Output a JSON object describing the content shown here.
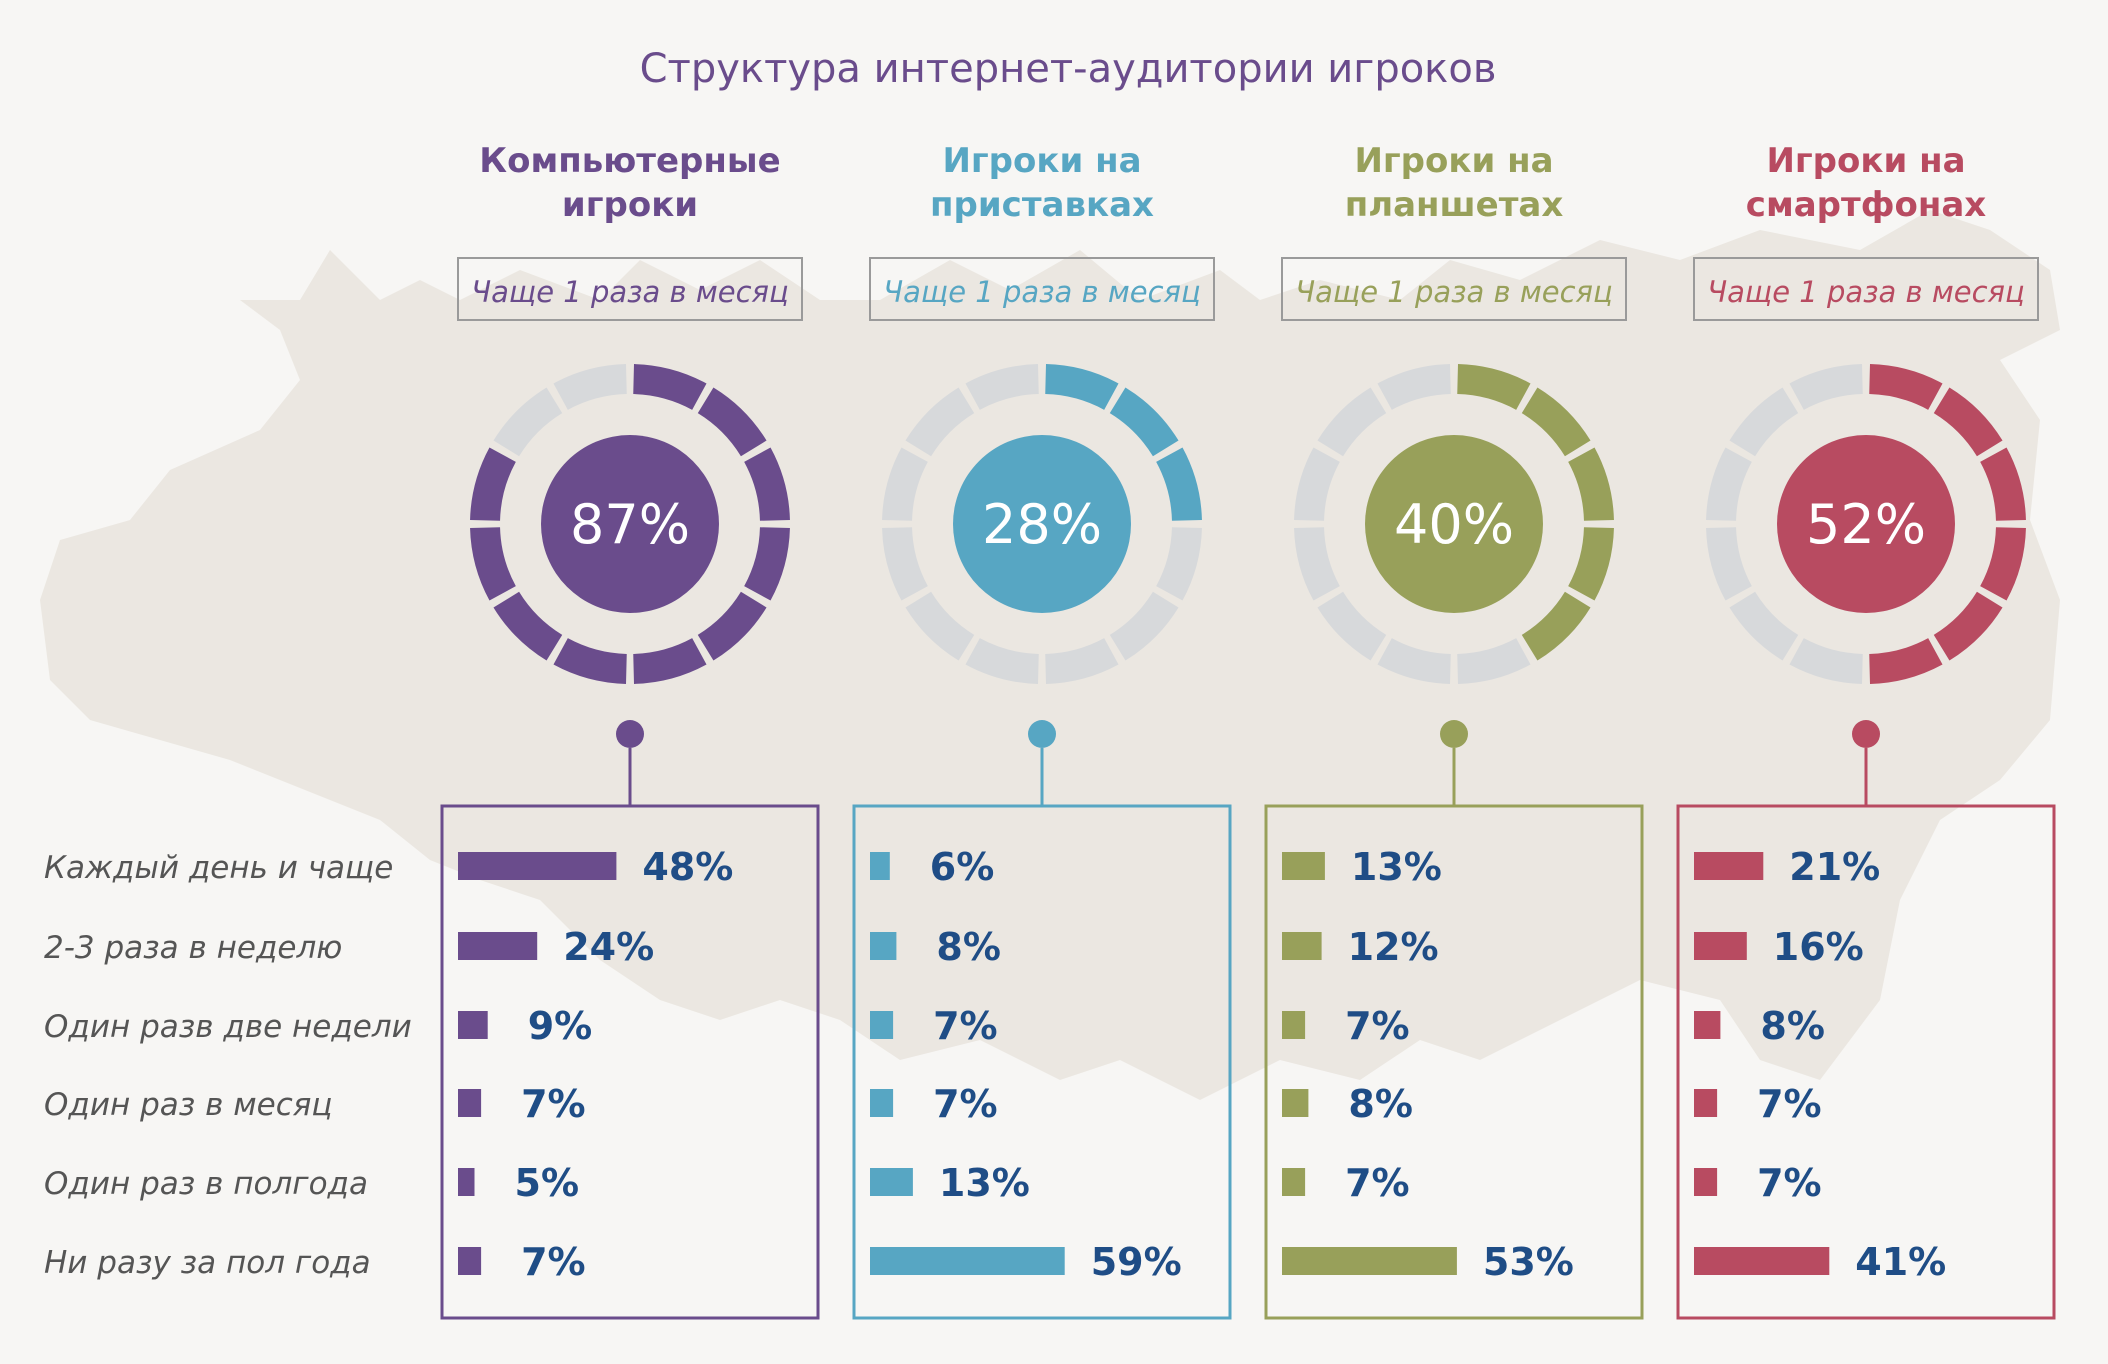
{
  "title": "Структура интернет-аудитории игроков",
  "colors": {
    "background": "#f7f6f4",
    "map": "#ebe7e1",
    "ring_inactive": "#d7d9db",
    "value_text": "#1f4d86",
    "label_text": "#555555",
    "frame": "#9a9a9a"
  },
  "row_labels": [
    "Каждый день и чаще",
    "2-3 раза в неделю",
    "Один разв две недели",
    "Один раз в месяц",
    "Один раз в полгода",
    "Ни разу за пол года"
  ],
  "chart_data": {
    "type": "bar",
    "title": "Структура интернет-аудитории игроков",
    "categories": [
      "Каждый день и чаще",
      "2-3 раза в неделю",
      "Один разв две недели",
      "Один раз в месяц",
      "Один раз в полгода",
      "Ни разу за пол года"
    ],
    "series": [
      {
        "name": "Компьютерные игроки",
        "heading": [
          "Компьютерные",
          "игроки"
        ],
        "frequency_label": "Чаще 1 раза в месяц",
        "donut_value": 87,
        "donut_label": "87%",
        "color": "#6a4c8c",
        "values": [
          48,
          24,
          9,
          7,
          5,
          7
        ],
        "value_labels": [
          "48%",
          "24%",
          "9%",
          "7%",
          "5%",
          "7%"
        ]
      },
      {
        "name": "Игроки на приставках",
        "heading": [
          "Игроки на",
          "приставках"
        ],
        "frequency_label": "Чаще 1 раза в месяц",
        "donut_value": 28,
        "donut_label": "28%",
        "color": "#57a6c3",
        "values": [
          6,
          8,
          7,
          7,
          13,
          59
        ],
        "value_labels": [
          "6%",
          "8%",
          "7%",
          "7%",
          "13%",
          "59%"
        ]
      },
      {
        "name": "Игроки на планшетах",
        "heading": [
          "Игроки на",
          "планшетах"
        ],
        "frequency_label": "Чаще 1 раза в месяц",
        "donut_value": 40,
        "donut_label": "40%",
        "color": "#98a05a",
        "values": [
          13,
          12,
          7,
          8,
          7,
          53
        ],
        "value_labels": [
          "13%",
          "12%",
          "7%",
          "8%",
          "7%",
          "53%"
        ]
      },
      {
        "name": "Игроки на смартфонах",
        "heading": [
          "Игроки на",
          "смартфонах"
        ],
        "frequency_label": "Чаще 1 раза в месяц",
        "donut_value": 52,
        "donut_label": "52%",
        "color": "#b84b61",
        "values": [
          21,
          16,
          8,
          7,
          7,
          41
        ],
        "value_labels": [
          "21%",
          "16%",
          "8%",
          "7%",
          "7%",
          "41%"
        ]
      }
    ],
    "donut_segments": 12,
    "xlim": [
      0,
      60
    ]
  }
}
